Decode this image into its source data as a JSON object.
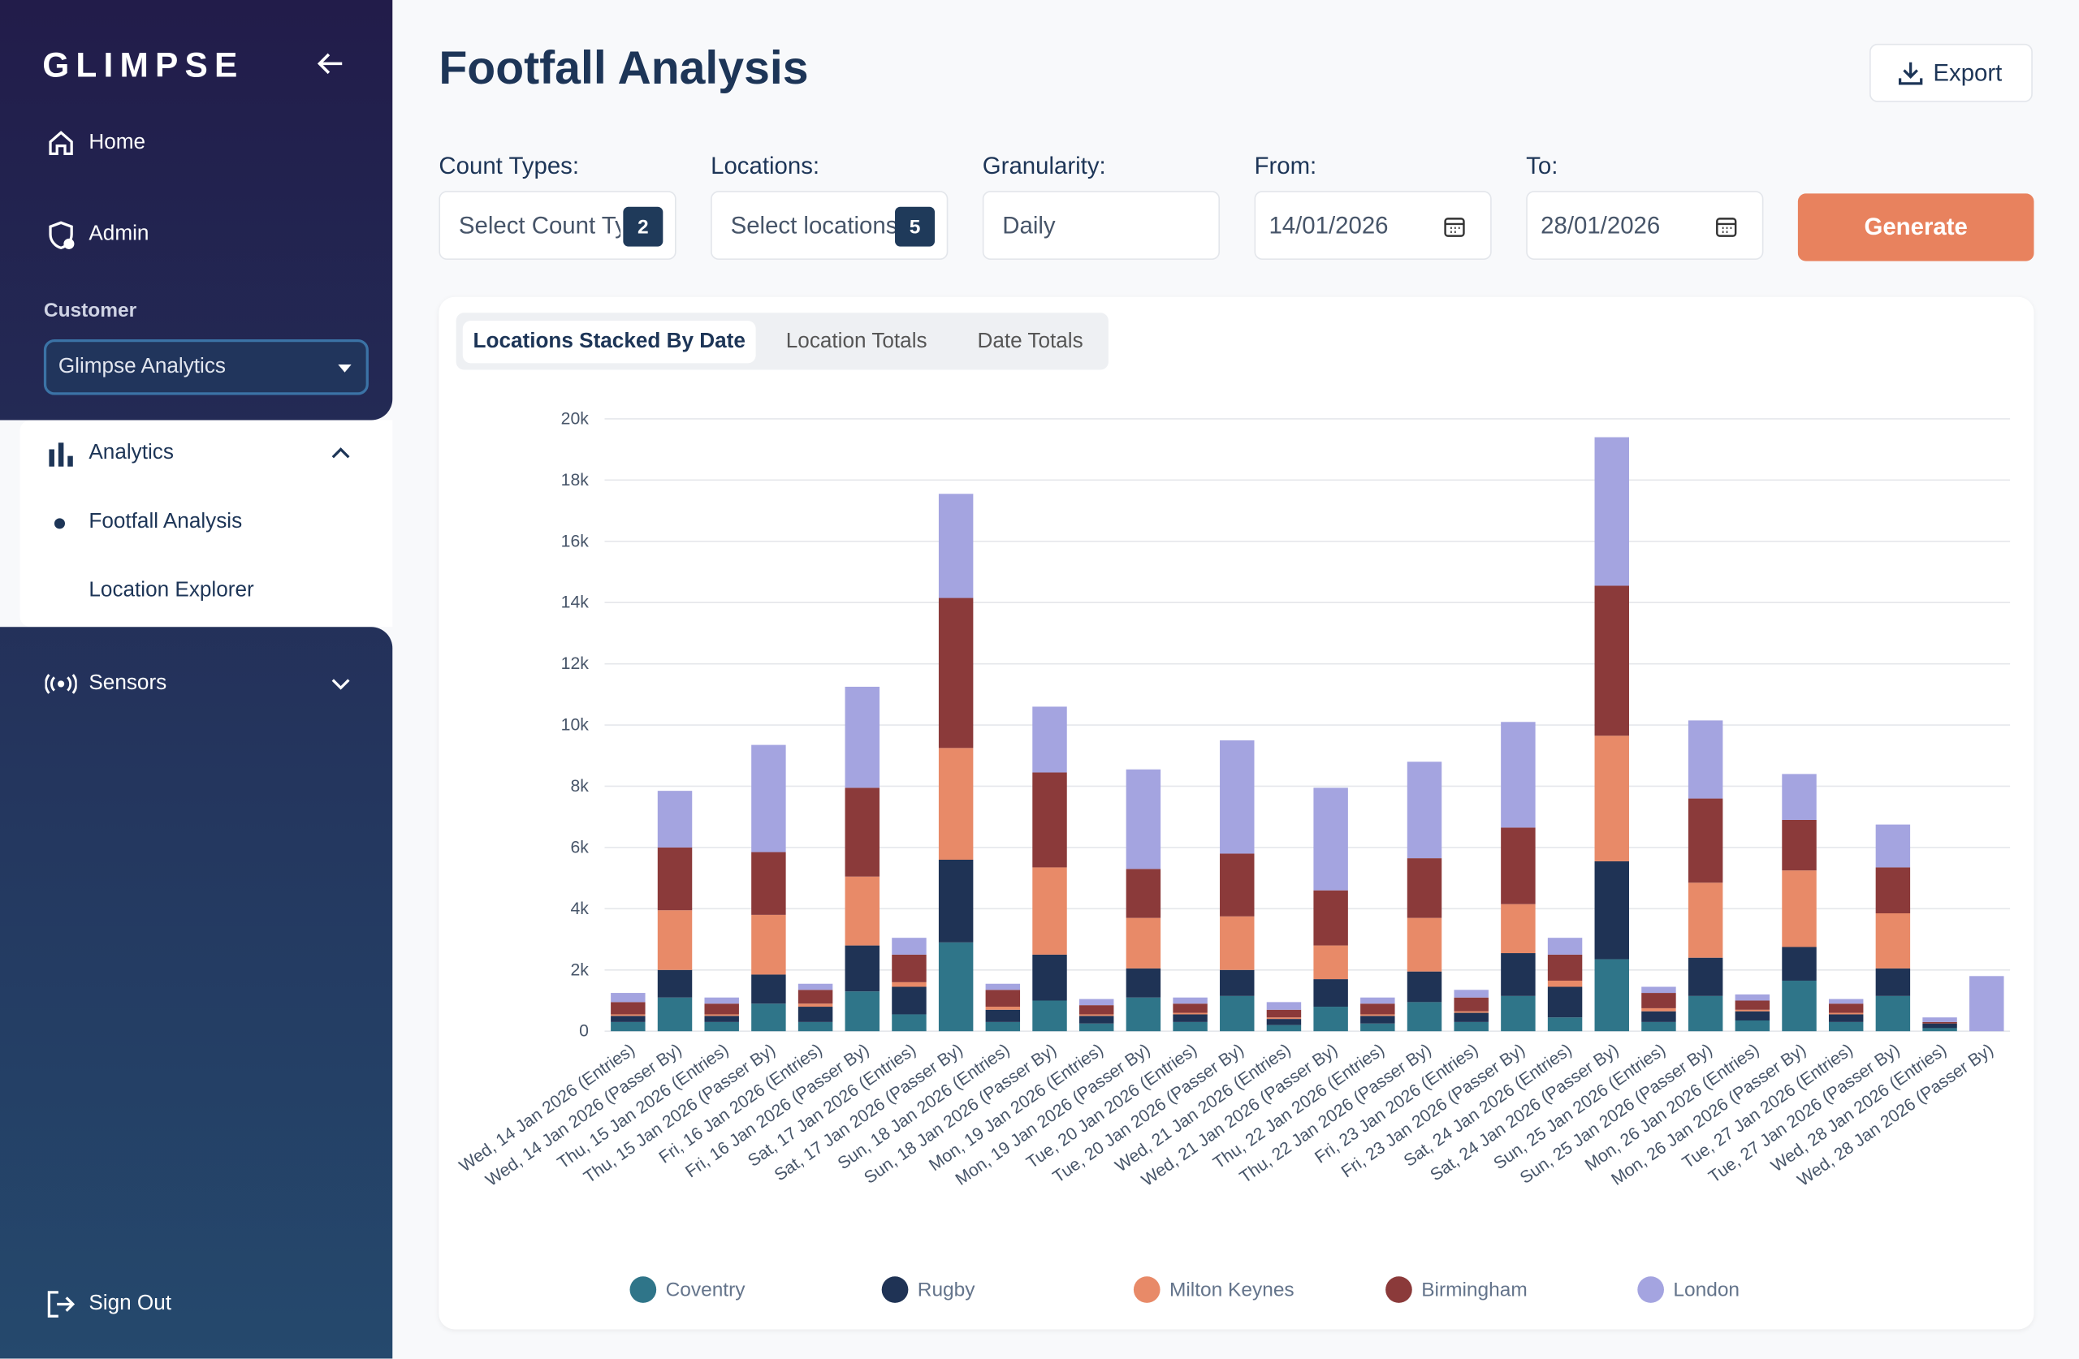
{
  "sidebar": {
    "logo": "GLIMPSE",
    "nav": [
      "Home",
      "Admin"
    ],
    "customer_label": "Customer",
    "customer": "Glimpse Analytics",
    "analytics": "Analytics",
    "sub_nav": [
      "Footfall Analysis",
      "Location Explorer"
    ],
    "sensors": "Sensors",
    "sign_out": "Sign Out"
  },
  "header": {
    "title": "Footfall Analysis",
    "export": "Export"
  },
  "filters": {
    "count_types": {
      "label": "Count Types:",
      "placeholder": "Select Count Types",
      "count": 2
    },
    "locations": {
      "label": "Locations:",
      "placeholder": "Select locations",
      "count": 5
    },
    "granularity": {
      "label": "Granularity:",
      "value": "Daily"
    },
    "from": {
      "label": "From:",
      "value": "14/01/2026"
    },
    "to": {
      "label": "To:",
      "value": "28/01/2026"
    },
    "generate": "Generate"
  },
  "tabs": [
    "Locations Stacked By Date",
    "Location Totals",
    "Date Totals"
  ],
  "chart_data": {
    "type": "stacked_bar",
    "grid": true,
    "categories": [
      "Wed, 14 Jan 2026 (Entries)",
      "Wed, 14 Jan 2026 (Passer By)",
      "Thu, 15 Jan 2026 (Entries)",
      "Thu, 15 Jan 2026 (Passer By)",
      "Fri, 16 Jan 2026 (Entries)",
      "Fri, 16 Jan 2026 (Passer By)",
      "Sat, 17 Jan 2026 (Entries)",
      "Sat, 17 Jan 2026 (Passer By)",
      "Sun, 18 Jan 2026 (Entries)",
      "Sun, 18 Jan 2026 (Passer By)",
      "Mon, 19 Jan 2026 (Entries)",
      "Mon, 19 Jan 2026 (Passer By)",
      "Tue, 20 Jan 2026 (Entries)",
      "Tue, 20 Jan 2026 (Passer By)",
      "Wed, 21 Jan 2026 (Entries)",
      "Wed, 21 Jan 2026 (Passer By)",
      "Thu, 22 Jan 2026 (Entries)",
      "Thu, 22 Jan 2026 (Passer By)",
      "Fri, 23 Jan 2026 (Entries)",
      "Fri, 23 Jan 2026 (Passer By)",
      "Sat, 24 Jan 2026 (Entries)",
      "Sat, 24 Jan 2026 (Passer By)",
      "Sun, 25 Jan 2026 (Entries)",
      "Sun, 25 Jan 2026 (Passer By)",
      "Mon, 26 Jan 2026 (Entries)",
      "Mon, 26 Jan 2026 (Passer By)",
      "Tue, 27 Jan 2026 (Entries)",
      "Tue, 27 Jan 2026 (Passer By)",
      "Wed, 28 Jan 2026 (Entries)",
      "Wed, 28 Jan 2026 (Passer By)"
    ],
    "series": [
      {
        "name": "Coventry",
        "color": "#2f7589",
        "values": [
          300,
          1100,
          300,
          900,
          300,
          1300,
          550,
          2900,
          300,
          1000,
          250,
          1100,
          300,
          1150,
          200,
          800,
          250,
          950,
          300,
          1150,
          450,
          2350,
          300,
          1150,
          350,
          1650,
          300,
          1150,
          100,
          0
        ]
      },
      {
        "name": "Rugby",
        "color": "#1f3355",
        "values": [
          200,
          900,
          200,
          950,
          500,
          1500,
          900,
          2700,
          400,
          1500,
          250,
          950,
          250,
          850,
          200,
          900,
          250,
          1000,
          300,
          1400,
          1000,
          3200,
          350,
          1250,
          300,
          1100,
          250,
          900,
          150,
          0
        ]
      },
      {
        "name": "Milton Keynes",
        "color": "#e88a68",
        "values": [
          50,
          1950,
          50,
          1950,
          100,
          2250,
          150,
          3650,
          100,
          2850,
          50,
          1650,
          50,
          1750,
          50,
          1100,
          50,
          1750,
          50,
          1600,
          200,
          4100,
          100,
          2450,
          50,
          2500,
          50,
          1800,
          0,
          0
        ]
      },
      {
        "name": "Birmingham",
        "color": "#8b3a3a",
        "values": [
          400,
          2050,
          350,
          2050,
          450,
          2900,
          900,
          4900,
          550,
          3100,
          300,
          1600,
          300,
          2050,
          250,
          1800,
          350,
          1950,
          450,
          2500,
          850,
          4900,
          500,
          2750,
          300,
          1650,
          300,
          1500,
          50,
          0
        ]
      },
      {
        "name": "London",
        "color": "#a4a4e0",
        "values": [
          300,
          1850,
          200,
          3500,
          200,
          3300,
          550,
          3400,
          200,
          2150,
          200,
          3250,
          200,
          3700,
          250,
          3350,
          200,
          3150,
          250,
          3450,
          550,
          4850,
          200,
          2550,
          200,
          1500,
          150,
          1400,
          150,
          1800
        ]
      }
    ],
    "ylim": [
      0,
      20000
    ],
    "yticks": [
      0,
      {
        "value": 2000,
        "label": "2k"
      },
      {
        "value": 4000,
        "label": "4k"
      },
      {
        "value": 6000,
        "label": "6k"
      },
      {
        "value": 8000,
        "label": "8k"
      },
      {
        "value": 10000,
        "label": "10k"
      },
      {
        "value": 12000,
        "label": "12k"
      },
      {
        "value": 14000,
        "label": "14k"
      },
      {
        "value": 16000,
        "label": "16k"
      },
      {
        "value": 18000,
        "label": "18k"
      },
      {
        "value": 20000,
        "label": "20k"
      }
    ]
  }
}
